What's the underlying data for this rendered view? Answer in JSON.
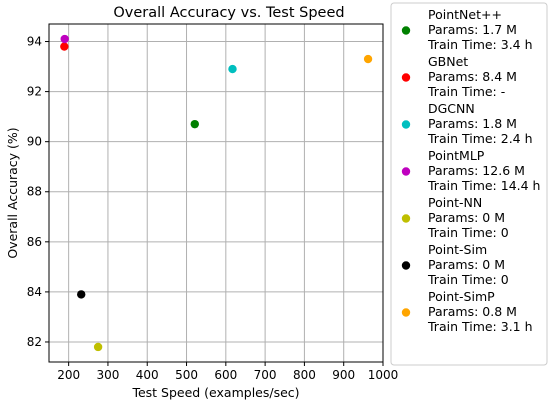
{
  "chart_data": {
    "type": "scatter",
    "title": "Overall Accuracy vs. Test Speed",
    "xlabel": "Test Speed (examples/sec)",
    "ylabel": "Overall Accuracy (%)",
    "xlim": [
      150,
      1000
    ],
    "ylim": [
      81.2,
      94.7
    ],
    "xticks": [
      200,
      300,
      400,
      500,
      600,
      700,
      800,
      900,
      1000
    ],
    "yticks": [
      82,
      84,
      86,
      88,
      90,
      92,
      94
    ],
    "grid": true,
    "legend_position": "outside-right",
    "series": [
      {
        "name": "PointNet++",
        "params": "Params: 1.7 M",
        "train_time": "Train Time: 3.4 h",
        "color": "#008000",
        "x": 521,
        "y": 90.7
      },
      {
        "name": "GBNet",
        "params": "Params: 8.4 M",
        "train_time": "Train Time: -",
        "color": "#ff0000",
        "x": 189,
        "y": 93.8
      },
      {
        "name": "DGCNN",
        "params": "Params: 1.8 M",
        "train_time": "Train Time: 2.4 h",
        "color": "#00bfbf",
        "x": 617,
        "y": 92.9
      },
      {
        "name": "PointMLP",
        "params": "Params: 12.6 M",
        "train_time": "Train Time: 14.4 h",
        "color": "#bf00bf",
        "x": 190,
        "y": 94.1
      },
      {
        "name": "Point-NN",
        "params": "Params: 0 M",
        "train_time": "Train Time: 0",
        "color": "#bfbf00",
        "x": 275,
        "y": 81.8
      },
      {
        "name": "Point-Sim",
        "params": "Params: 0 M",
        "train_time": "Train Time: 0",
        "color": "#000000",
        "x": 232,
        "y": 83.9
      },
      {
        "name": "Point-SimP",
        "params": "Params: 0.8 M",
        "train_time": "Train Time: 3.1 h",
        "color": "#ffa500",
        "x": 962,
        "y": 93.3
      }
    ]
  }
}
